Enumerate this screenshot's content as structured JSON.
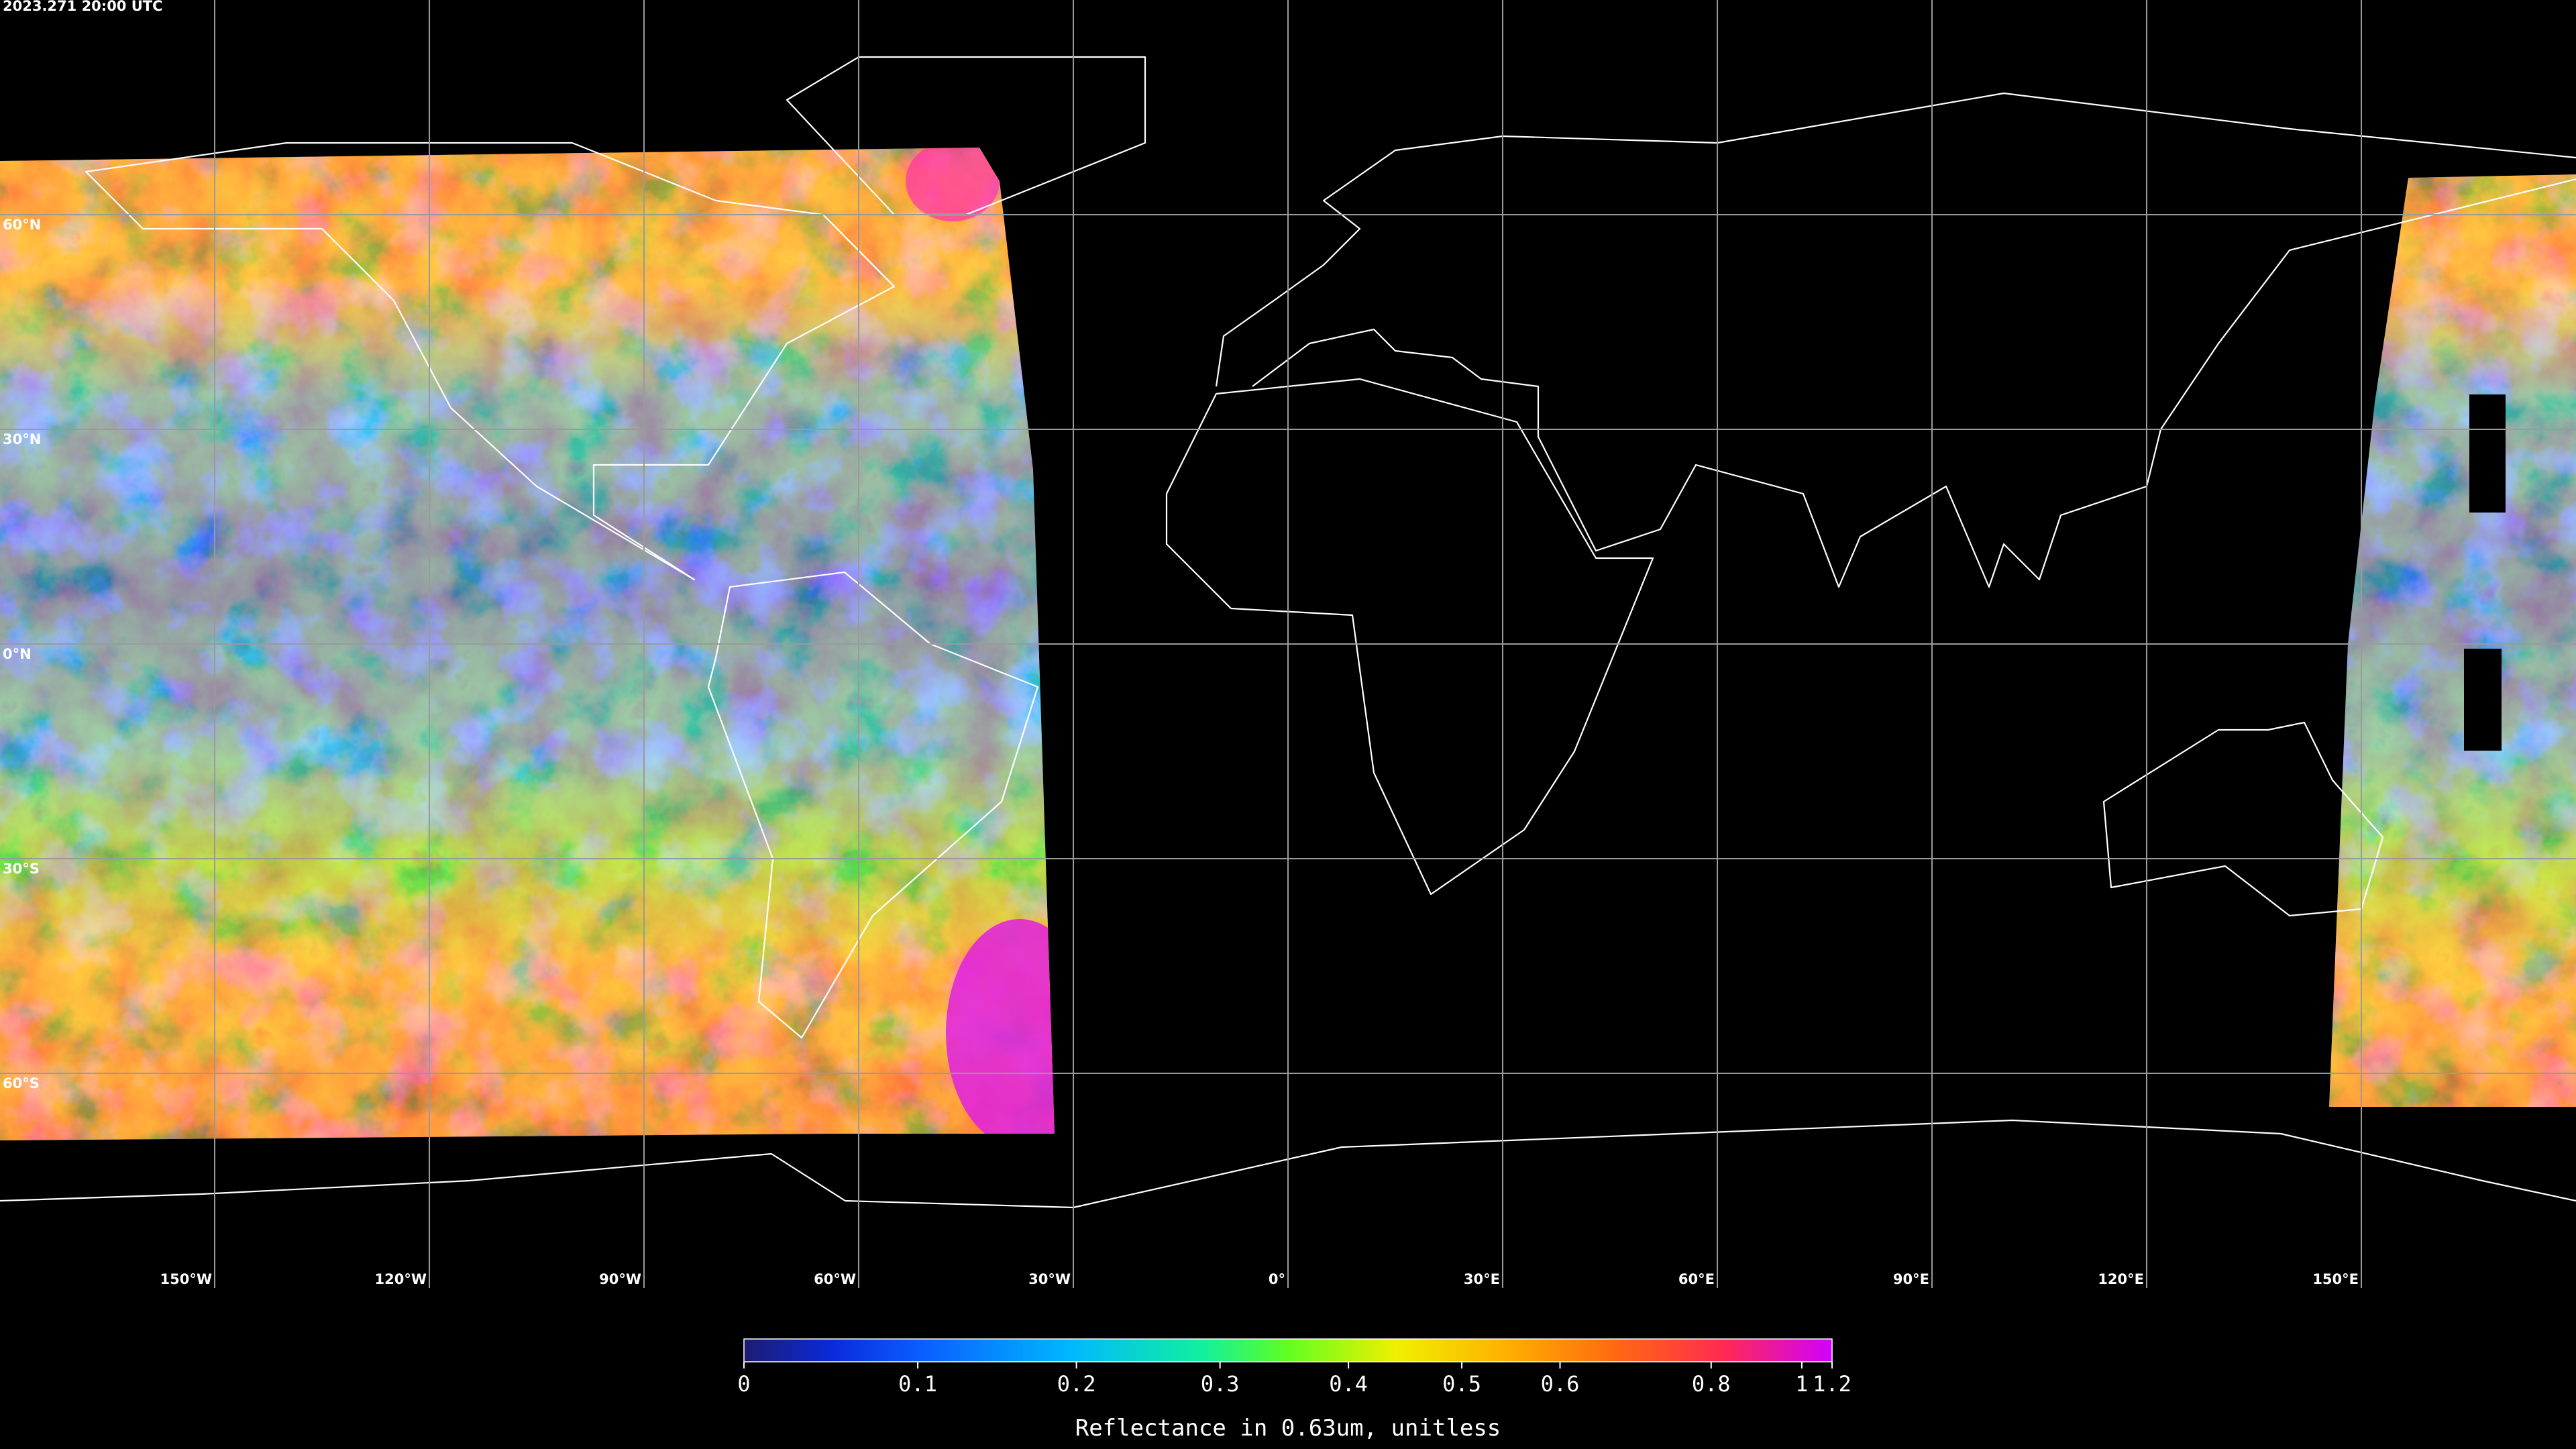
{
  "timestamp": "2023.271 20:00 UTC",
  "map": {
    "lon_ticks": [
      {
        "value": -150,
        "label": "150°W"
      },
      {
        "value": -120,
        "label": "120°W"
      },
      {
        "value": -90,
        "label": "90°W"
      },
      {
        "value": -60,
        "label": "60°W"
      },
      {
        "value": -30,
        "label": "30°W"
      },
      {
        "value": 0,
        "label": "0°"
      },
      {
        "value": 30,
        "label": "30°E"
      },
      {
        "value": 60,
        "label": "60°E"
      },
      {
        "value": 90,
        "label": "90°E"
      },
      {
        "value": 120,
        "label": "120°E"
      },
      {
        "value": 150,
        "label": "150°E"
      }
    ],
    "lat_ticks": [
      {
        "value": 60,
        "label": "60°N"
      },
      {
        "value": 30,
        "label": "30°N"
      },
      {
        "value": 0,
        "label": "0°N"
      },
      {
        "value": -30,
        "label": "30°S"
      },
      {
        "value": -60,
        "label": "60°S"
      }
    ]
  },
  "colorbar": {
    "range": [
      0,
      1.2
    ],
    "ticks": [
      0,
      0.1,
      0.2,
      0.3,
      0.4,
      0.5,
      0.6,
      0.8,
      1,
      1.2
    ],
    "title": "Reflectance in 0.63um, unitless"
  }
}
